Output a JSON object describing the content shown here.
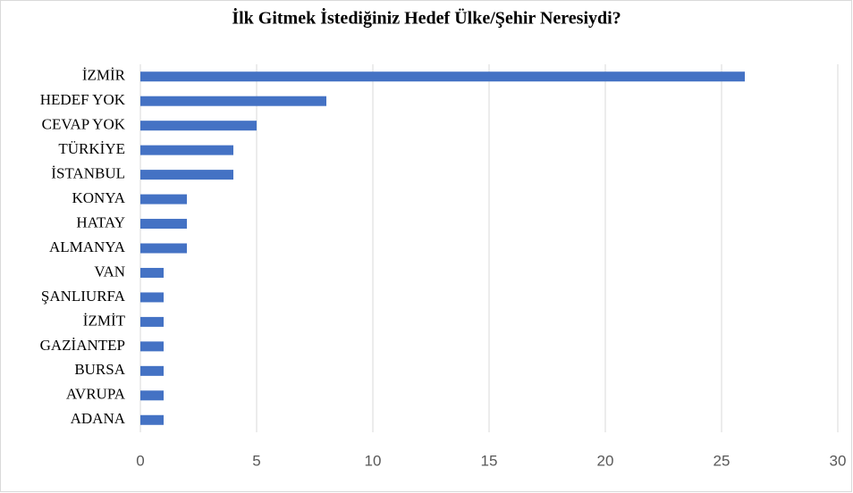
{
  "chart_data": {
    "type": "bar",
    "orientation": "horizontal",
    "title": "İlk Gitmek İstediğiniz Hedef Ülke/Şehir Neresiydi?",
    "categories": [
      "İZMİR",
      "HEDEF YOK",
      "CEVAP YOK",
      "TÜRKİYE",
      "İSTANBUL",
      "KONYA",
      "HATAY",
      "ALMANYA",
      "VAN",
      "ŞANLIURFA",
      "İZMİT",
      "GAZİANTEP",
      "BURSA",
      "AVRUPA",
      "ADANA"
    ],
    "values": [
      26,
      8,
      5,
      4,
      4,
      2,
      2,
      2,
      1,
      1,
      1,
      1,
      1,
      1,
      1
    ],
    "color": "#4472c4",
    "xlim": [
      0,
      30
    ],
    "xticks": [
      0,
      5,
      10,
      15,
      20,
      25,
      30
    ],
    "grid": true
  }
}
